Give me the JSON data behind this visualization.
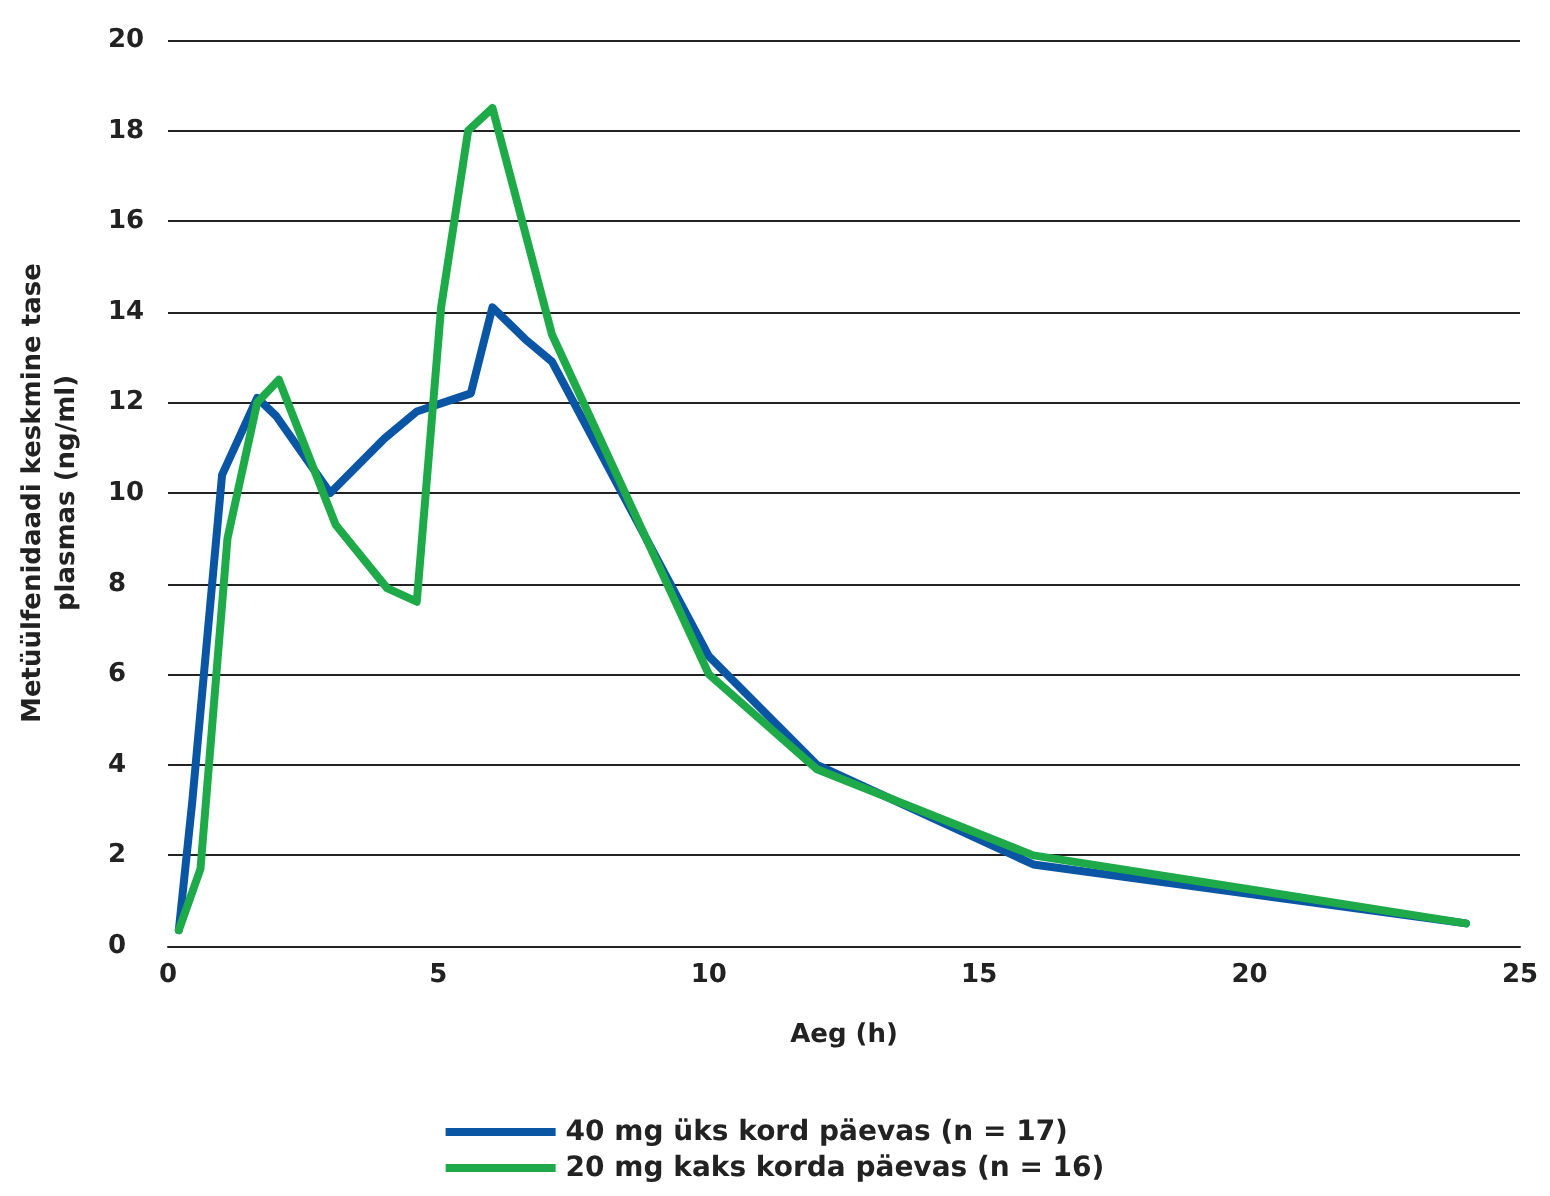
{
  "chart_data": {
    "type": "line",
    "xlabel": "Aeg (h)",
    "ylabel": "Metüülfenidaadi keskmine tase\nplasmas (ng/ml)",
    "xlim": [
      0,
      25
    ],
    "xticks": [
      0,
      5,
      10,
      15,
      20,
      25
    ],
    "ylim": [
      0,
      20
    ],
    "yticks": [
      0,
      2,
      4,
      6,
      8,
      10,
      12,
      14,
      16,
      18,
      20
    ],
    "grid": "y",
    "legend": "bottom",
    "marker": "none",
    "line_style": "solid",
    "series": [
      {
        "name": "40 mg üks kord päevas (n = 17)",
        "color": "#0a56a5",
        "x": [
          0.2,
          0.45,
          1.0,
          1.65,
          2.0,
          3.0,
          4.0,
          4.6,
          5.6,
          6.0,
          6.6,
          7.1,
          10,
          12,
          16,
          24
        ],
        "values": [
          0.35,
          3.2,
          10.4,
          12.1,
          11.7,
          10.0,
          11.2,
          11.8,
          12.2,
          14.1,
          13.4,
          12.9,
          6.4,
          4.0,
          1.8,
          0.5
        ]
      },
      {
        "name": "20 mg kaks korda päevas (n = 16)",
        "color": "#1faa4a",
        "x": [
          0.2,
          0.6,
          1.1,
          1.65,
          2.05,
          3.1,
          4.05,
          4.6,
          5.05,
          5.55,
          6.0,
          6.55,
          7.1,
          10,
          12,
          16,
          24
        ],
        "values": [
          0.35,
          1.7,
          9.0,
          12.0,
          12.5,
          9.3,
          7.9,
          7.6,
          14.1,
          18.0,
          18.5,
          16.0,
          13.5,
          6.0,
          3.9,
          2.0,
          0.5
        ]
      }
    ]
  }
}
